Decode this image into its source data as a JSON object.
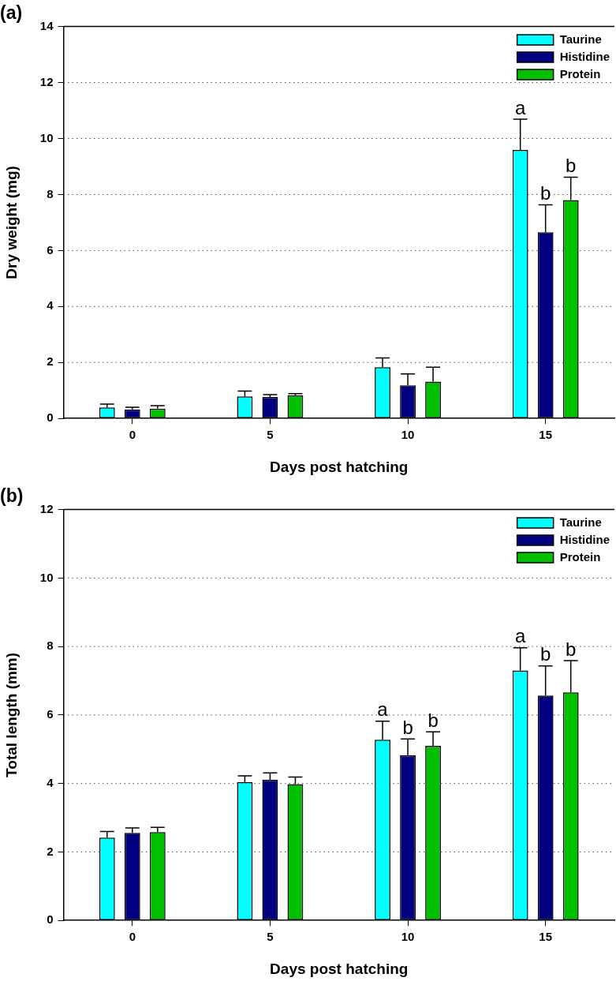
{
  "chart_data": [
    {
      "type": "bar",
      "title": "(a)",
      "xlabel": "Days post hatching",
      "ylabel": "Dry weight (mg)",
      "categories": [
        "0",
        "5",
        "10",
        "15"
      ],
      "series": [
        {
          "name": "Taurine",
          "color": "#00ffff",
          "values": [
            0.39,
            0.79,
            1.83,
            9.59
          ],
          "errors": [
            [
              0.39,
              0.51
            ],
            [
              0.79,
              0.98
            ],
            [
              1.83,
              2.16
            ],
            [
              9.59,
              10.69
            ]
          ],
          "value_labels": [
            null,
            null,
            null,
            "a"
          ]
        },
        {
          "name": "Histidine",
          "color": "#000080",
          "values": [
            0.32,
            0.77,
            1.18,
            6.65
          ],
          "errors": [
            [
              0.32,
              0.4
            ],
            [
              0.77,
              0.85
            ],
            [
              1.18,
              1.59
            ],
            [
              6.65,
              7.63
            ]
          ],
          "value_labels": [
            null,
            null,
            null,
            "b"
          ]
        },
        {
          "name": "Protein",
          "color": "#00c000",
          "values": [
            0.35,
            0.82,
            1.32,
            7.8
          ],
          "errors": [
            [
              0.35,
              0.46
            ],
            [
              0.82,
              0.89
            ],
            [
              1.32,
              1.83
            ],
            [
              7.8,
              8.62
            ]
          ],
          "value_labels": [
            null,
            null,
            null,
            "b"
          ]
        }
      ],
      "ylim": [
        0,
        14
      ],
      "yticks": [
        0,
        2,
        4,
        6,
        8,
        10,
        12,
        14
      ],
      "grid": "y",
      "legend": "top right"
    },
    {
      "type": "bar",
      "title": "(b)",
      "xlabel": "Days post hatching",
      "ylabel": "Total length (mm)",
      "categories": [
        "0",
        "5",
        "10",
        "15"
      ],
      "series": [
        {
          "name": "Taurine",
          "color": "#00ffff",
          "values": [
            2.42,
            4.04,
            5.28,
            7.3
          ],
          "errors": [
            [
              2.42,
              2.6
            ],
            [
              4.04,
              4.22
            ],
            [
              5.28,
              5.82
            ],
            [
              7.3,
              7.96
            ]
          ],
          "value_labels": [
            null,
            null,
            "a",
            "a"
          ]
        },
        {
          "name": "Histidine",
          "color": "#000080",
          "values": [
            2.56,
            4.11,
            4.82,
            6.57
          ],
          "errors": [
            [
              2.56,
              2.7
            ],
            [
              4.11,
              4.31
            ],
            [
              4.82,
              5.3
            ],
            [
              6.57,
              7.43
            ]
          ],
          "value_labels": [
            null,
            null,
            "b",
            "b"
          ]
        },
        {
          "name": "Protein",
          "color": "#00c000",
          "values": [
            2.58,
            3.98,
            5.1,
            6.66
          ],
          "errors": [
            [
              2.58,
              2.72
            ],
            [
              3.98,
              4.19
            ],
            [
              5.1,
              5.51
            ],
            [
              6.66,
              7.59
            ]
          ],
          "value_labels": [
            null,
            null,
            "b",
            "b"
          ]
        }
      ],
      "ylim": [
        0,
        12
      ],
      "yticks": [
        0,
        2,
        4,
        6,
        8,
        10,
        12
      ],
      "grid": "y",
      "legend": "top right"
    }
  ]
}
